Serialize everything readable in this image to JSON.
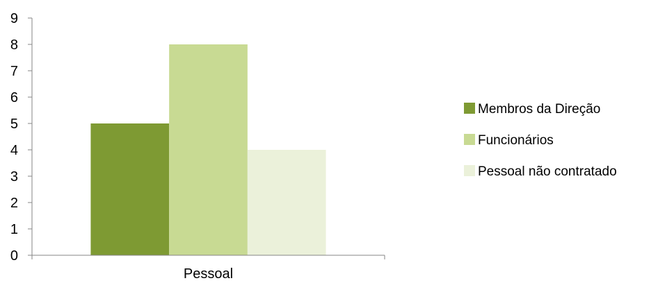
{
  "chart_data": {
    "type": "bar",
    "categories": [
      "Pessoal"
    ],
    "series": [
      {
        "name": "Membros da Direção",
        "values": [
          5
        ],
        "color": "#7e9a33"
      },
      {
        "name": "Funcionários",
        "values": [
          8
        ],
        "color": "#c8da93"
      },
      {
        "name": "Pessoal não contratado",
        "values": [
          4
        ],
        "color": "#ebf1da"
      }
    ],
    "title": "",
    "xlabel": "",
    "ylabel": "",
    "ylim": [
      0,
      9
    ],
    "yticks": [
      "0",
      "1",
      "2",
      "3",
      "4",
      "5",
      "6",
      "7",
      "8",
      "9"
    ],
    "grid": false,
    "legend_position": "right"
  }
}
